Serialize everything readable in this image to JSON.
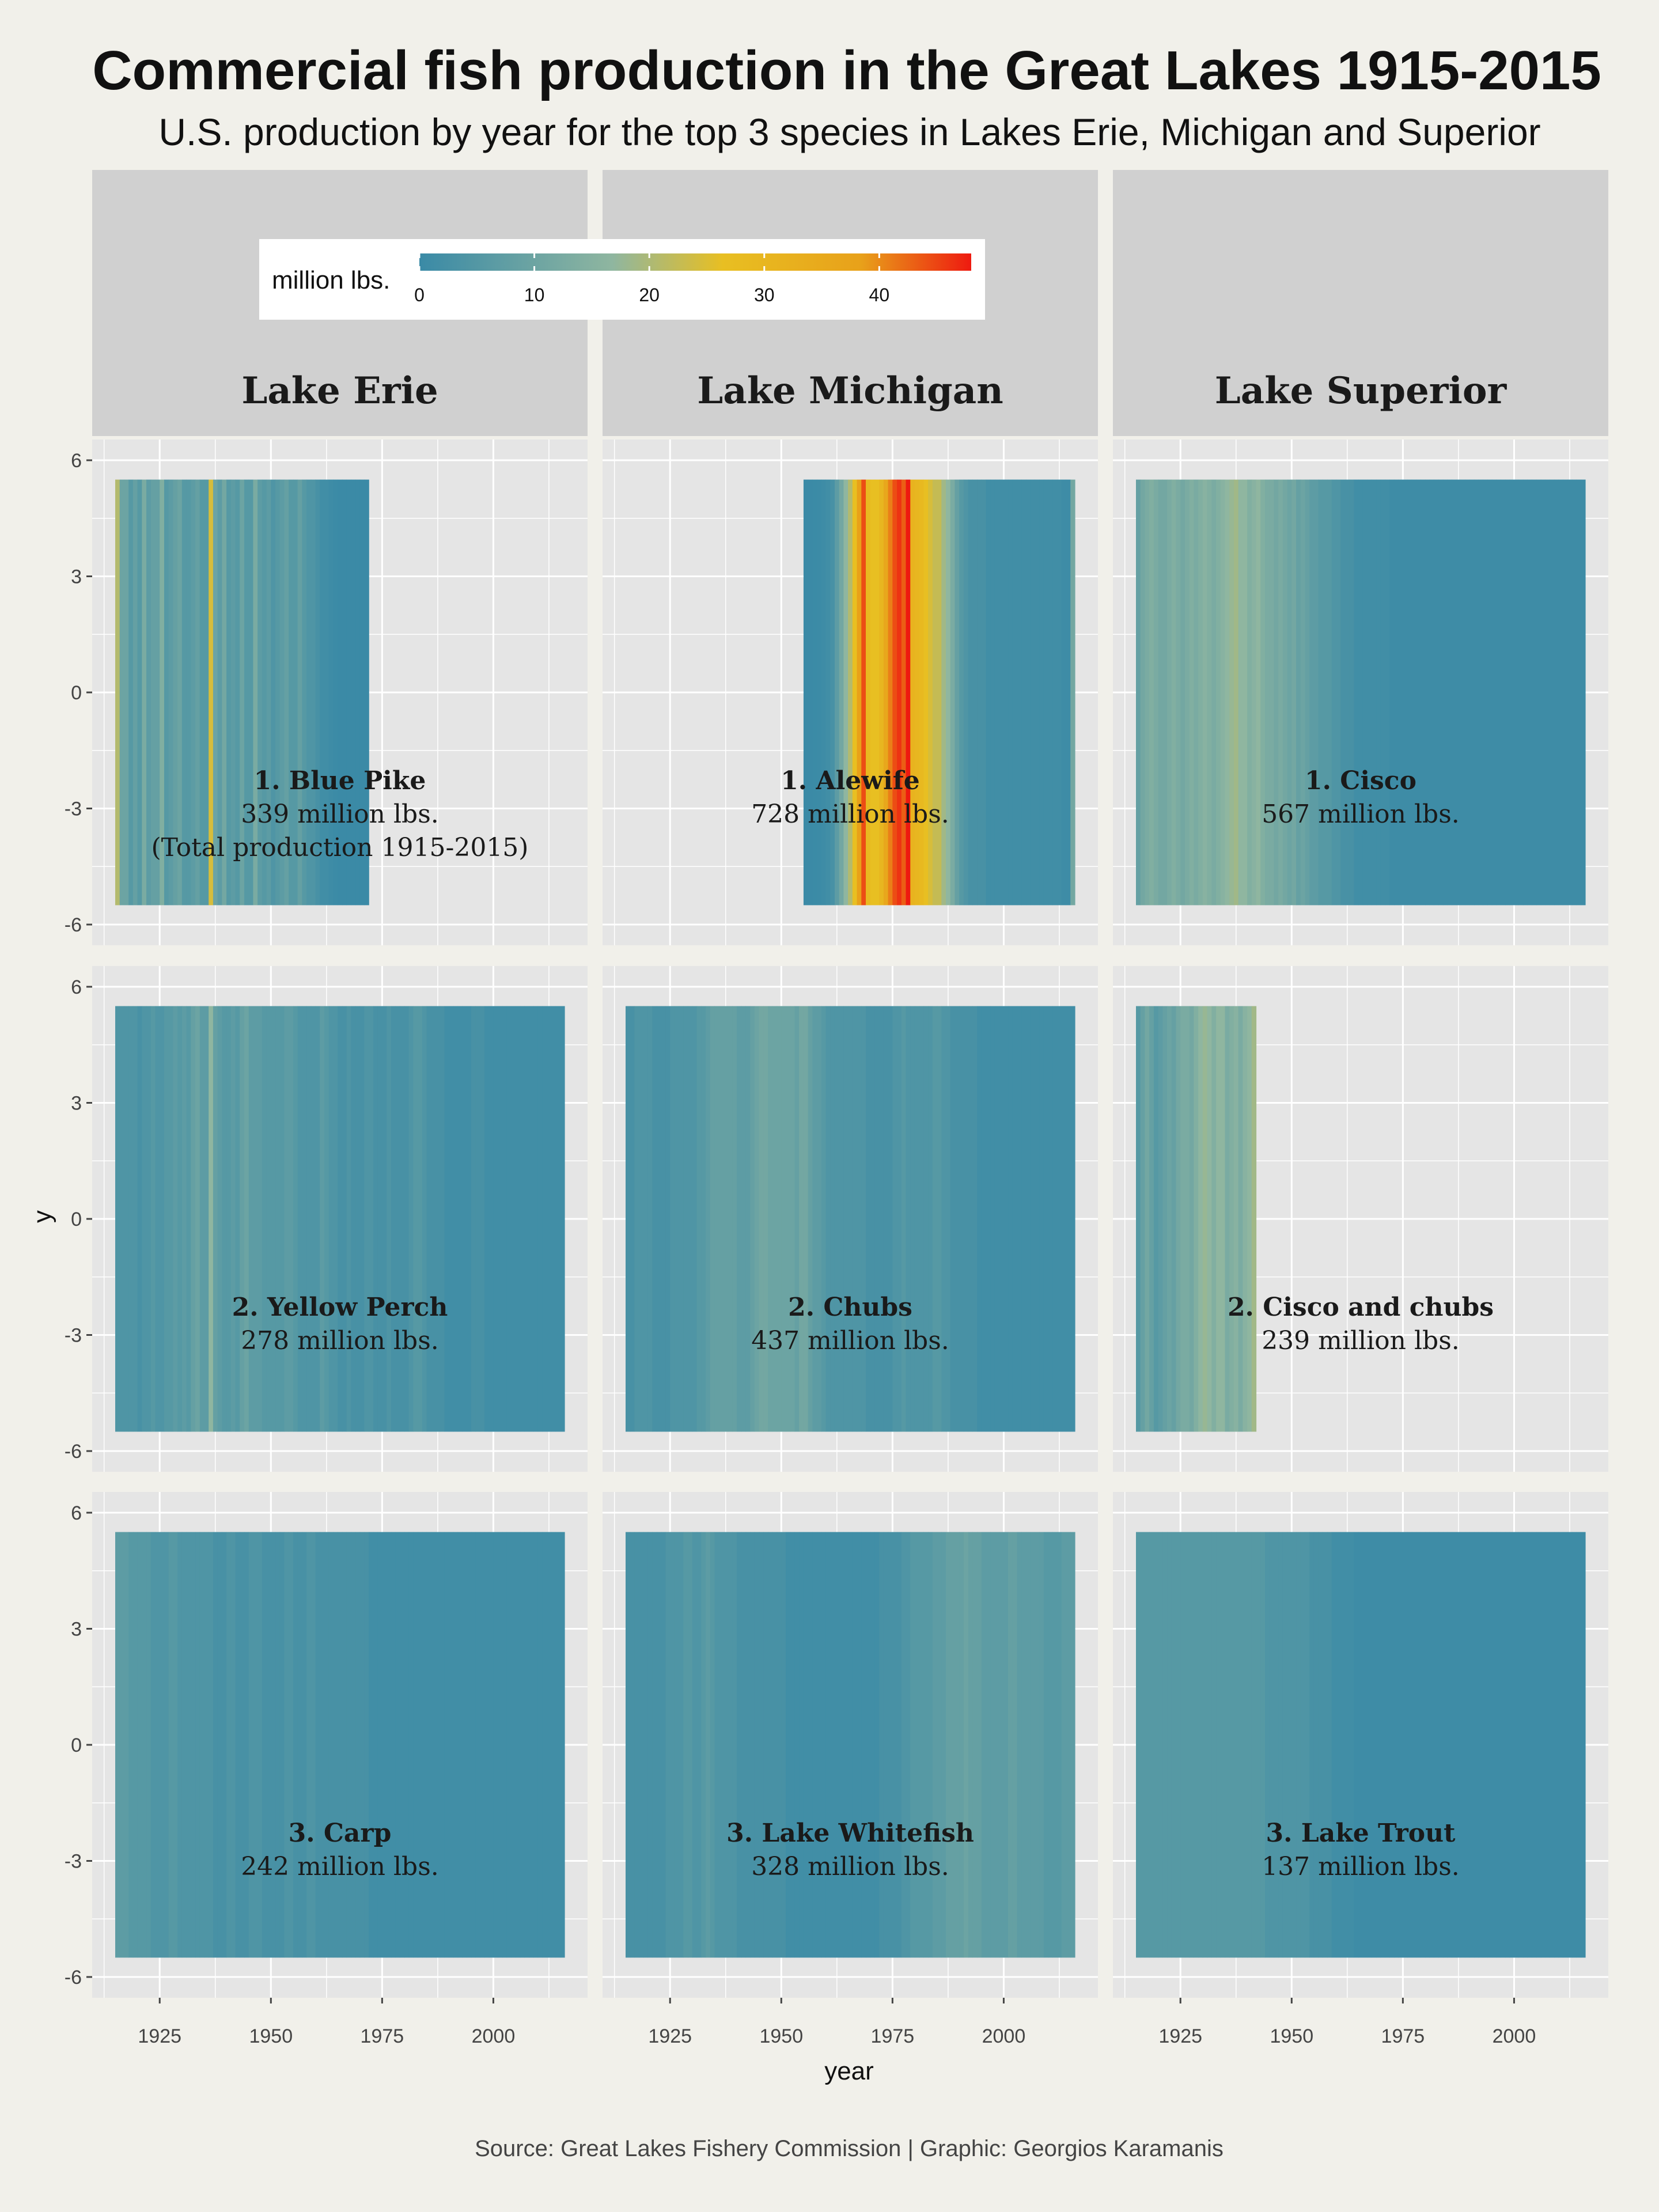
{
  "title": "Commercial fish production in the Great Lakes 1915-2015",
  "subtitle": "U.S. production by year for the top 3 species in Lakes Erie, Michigan and Superior",
  "caption": "Source: Great Lakes Fishery Commission | Graphic: Georgios Karamanis",
  "colors": {
    "background": "#f1f0ea",
    "panel": "#e5e5e5",
    "strip": "#d0d0d0",
    "grid": "#ffffff",
    "scale": [
      "#3a8aa6",
      "#8fb6a0",
      "#e8bf22",
      "#e8a11a",
      "#ee1a10"
    ]
  },
  "chart_data": {
    "type": "heatmap",
    "xlabel": "year",
    "ylabel": "y",
    "xlim": [
      1915,
      2015
    ],
    "ylim": [
      -6,
      6
    ],
    "x_ticks": [
      1925,
      1950,
      1975,
      2000
    ],
    "y_ticks": [
      -6,
      -3,
      0,
      3,
      6
    ],
    "legend": {
      "title": "million lbs.",
      "position": "top",
      "ticks": [
        0,
        10,
        20,
        30,
        40
      ],
      "range": [
        0,
        48
      ]
    },
    "columns": [
      "Lake Erie",
      "Lake Michigan",
      "Lake Superior"
    ],
    "panels": [
      {
        "lake": "Lake Erie",
        "row": 0,
        "name": "1. Blue Pike",
        "total": "339 million lbs.",
        "note": "(Total production 1915-2015)",
        "start": 1915,
        "end": 1971,
        "values": [
          16,
          7,
          7,
          4,
          6,
          4,
          9,
          5,
          6,
          6,
          10,
          4,
          5,
          6,
          7,
          4,
          4,
          5,
          6,
          4,
          4,
          20,
          7,
          5,
          8,
          4,
          5,
          4,
          7,
          4,
          4,
          9,
          5,
          4,
          5,
          3,
          4,
          5,
          6,
          4,
          4,
          6,
          4,
          3,
          3,
          2,
          1,
          1,
          0.5,
          0.3,
          0.1,
          0.1,
          0.1,
          0.1,
          0.1,
          0.1,
          0.1
        ]
      },
      {
        "lake": "Lake Michigan",
        "row": 0,
        "name": "1. Alewife",
        "total": "728 million lbs.",
        "start": 1955,
        "end": 2015,
        "values": [
          0.1,
          0.1,
          0.2,
          0.3,
          0.5,
          1,
          2,
          5,
          8,
          12,
          16,
          22,
          32,
          42,
          24,
          22,
          22,
          25,
          30,
          36,
          42,
          45,
          40,
          48,
          26,
          25,
          24,
          22,
          20,
          18,
          18,
          14,
          12,
          9,
          6,
          4,
          3,
          2,
          2,
          2,
          2,
          1,
          1,
          1,
          1,
          1,
          1,
          1,
          1,
          1,
          1,
          1,
          1,
          1,
          1,
          1,
          1,
          1,
          0.5,
          0.5,
          8
        ]
      },
      {
        "lake": "Lake Superior",
        "row": 0,
        "name": "1. Cisco",
        "total": "567 million lbs.",
        "start": 1915,
        "end": 2015,
        "values": [
          6,
          8,
          9,
          10,
          9,
          8,
          8,
          9,
          10,
          9,
          8,
          9,
          10,
          9,
          10,
          11,
          10,
          9,
          10,
          11,
          12,
          13,
          14,
          12,
          12,
          10,
          11,
          12,
          10,
          9,
          9,
          8,
          9,
          8,
          7,
          8,
          6,
          7,
          6,
          5,
          5,
          4,
          4,
          4,
          3,
          3,
          2,
          2,
          2,
          1,
          1,
          1,
          1,
          1,
          1,
          1,
          1,
          0.5,
          0.5,
          0.5,
          0.5,
          0.5,
          0.5,
          0.5,
          0.5,
          0.5,
          0.5,
          0.5,
          0.5,
          0.5,
          0.5,
          0.5,
          0.5,
          0.5,
          0.5,
          0.5,
          0.5,
          0.5,
          0.5,
          0.5,
          0.5,
          0.5,
          0.5,
          0.5,
          0.5,
          0.5,
          0.5,
          0.5,
          0.5,
          0.5,
          0.5,
          0.5,
          0.5,
          0.5,
          0.5,
          0.5,
          0.5,
          0.5,
          0.5,
          0.5,
          0.5
        ]
      },
      {
        "lake": "Lake Erie",
        "row": 1,
        "name": "2. Yellow Perch",
        "total": "278 million lbs.",
        "start": 1915,
        "end": 2015,
        "values": [
          3,
          3,
          3,
          3,
          3,
          2,
          3,
          3,
          4,
          3,
          3,
          4,
          4,
          5,
          4,
          5,
          4,
          6,
          7,
          5,
          5,
          12,
          6,
          5,
          4,
          4,
          5,
          4,
          6,
          7,
          5,
          5,
          5,
          4,
          4,
          4,
          4,
          4,
          5,
          5,
          4,
          3,
          3,
          3,
          3,
          3,
          5,
          4,
          3,
          3,
          2,
          2,
          3,
          2,
          2,
          2,
          3,
          3,
          2,
          2,
          2,
          3,
          2,
          2,
          2,
          2,
          3,
          4,
          4,
          3,
          2,
          2,
          2,
          2,
          1,
          1,
          1,
          1,
          1,
          1,
          2,
          2,
          2,
          1,
          1,
          1,
          1,
          1,
          1,
          1,
          1,
          1,
          1,
          1,
          1,
          1,
          1,
          1,
          1,
          1,
          1
        ]
      },
      {
        "lake": "Lake Michigan",
        "row": 1,
        "name": "2. Chubs",
        "total": "437 million lbs.",
        "start": 1915,
        "end": 2015,
        "values": [
          2,
          2,
          3,
          3,
          3,
          3,
          2,
          2,
          2,
          2,
          3,
          3,
          3,
          3,
          3,
          3,
          4,
          4,
          5,
          6,
          6,
          6,
          6,
          6,
          6,
          5,
          5,
          5,
          6,
          7,
          8,
          8,
          7,
          7,
          7,
          7,
          7,
          7,
          6,
          8,
          8,
          6,
          5,
          5,
          4,
          3,
          3,
          3,
          3,
          3,
          3,
          3,
          3,
          3,
          2,
          2,
          2,
          2,
          2,
          2,
          3,
          3,
          4,
          3,
          3,
          3,
          3,
          3,
          3,
          4,
          4,
          3,
          3,
          2,
          2,
          2,
          2,
          2,
          2,
          1,
          1,
          1,
          1,
          1,
          1,
          1,
          1,
          1,
          1,
          1,
          1,
          1,
          1,
          1,
          1,
          1,
          1,
          1,
          1,
          1,
          1
        ]
      },
      {
        "lake": "Lake Superior",
        "row": 1,
        "name": "2. Cisco and chubs",
        "total": "239 million lbs.",
        "start": 1915,
        "end": 1941,
        "values": [
          4,
          6,
          8,
          6,
          4,
          5,
          6,
          7,
          6,
          8,
          9,
          9,
          8,
          10,
          12,
          13,
          12,
          10,
          12,
          12,
          9,
          10,
          11,
          9,
          11,
          12,
          14
        ]
      },
      {
        "lake": "Lake Erie",
        "row": 2,
        "name": "3. Carp",
        "total": "242 million lbs.",
        "start": 1915,
        "end": 2015,
        "values": [
          5,
          5,
          5,
          4,
          4,
          4,
          4,
          4,
          3,
          3,
          3,
          3,
          4,
          4,
          3,
          3,
          3,
          3,
          3,
          3,
          3,
          3,
          2,
          2,
          2,
          3,
          3,
          2,
          2,
          2,
          3,
          3,
          3,
          2,
          2,
          2,
          2,
          2,
          3,
          3,
          2,
          2,
          2,
          3,
          3,
          2,
          2,
          2,
          2,
          2,
          2,
          2,
          2,
          2,
          2,
          2,
          2,
          1,
          1,
          1,
          1,
          1,
          1,
          1,
          1,
          1,
          1,
          1,
          1,
          1,
          1,
          1,
          1,
          1,
          1,
          1,
          1,
          1,
          1,
          1,
          1,
          1,
          1,
          1,
          1,
          1,
          1,
          1,
          1,
          1,
          1,
          1,
          1,
          1,
          1,
          1,
          1,
          1,
          1,
          1,
          1
        ]
      },
      {
        "lake": "Lake Michigan",
        "row": 2,
        "name": "3. Lake Whitefish",
        "total": "328 million lbs.",
        "start": 1915,
        "end": 2015,
        "values": [
          2,
          2,
          2,
          2,
          2,
          2,
          2,
          2,
          2,
          3,
          3,
          3,
          3,
          4,
          4,
          3,
          3,
          4,
          5,
          4,
          3,
          3,
          3,
          3,
          3,
          2,
          2,
          2,
          2,
          2,
          2,
          2,
          2,
          2,
          2,
          2,
          1,
          1,
          1,
          1,
          1,
          1,
          1,
          1,
          1,
          1,
          1,
          1,
          1,
          1,
          1,
          1,
          1,
          1,
          1,
          1,
          1,
          2,
          2,
          2,
          2,
          2,
          3,
          3,
          4,
          4,
          4,
          4,
          4,
          5,
          5,
          5,
          6,
          6,
          6,
          6,
          7,
          6,
          6,
          6,
          5,
          5,
          5,
          5,
          5,
          5,
          6,
          6,
          5,
          5,
          5,
          5,
          5,
          5,
          4,
          4,
          4,
          4,
          5,
          5,
          5
        ]
      },
      {
        "lake": "Lake Superior",
        "row": 2,
        "name": "3. Lake Trout",
        "total": "137 million lbs.",
        "start": 1915,
        "end": 2015,
        "values": [
          4,
          4,
          4,
          4,
          4,
          4,
          4,
          4,
          4,
          4,
          4,
          4,
          4,
          4,
          4,
          4,
          4,
          4,
          4,
          4,
          4,
          4,
          4,
          4,
          4,
          4,
          4,
          4,
          4,
          3,
          3,
          3,
          3,
          3,
          3,
          3,
          3,
          3,
          3,
          2,
          2,
          2,
          2,
          2,
          1,
          1,
          1,
          1,
          1,
          0.5,
          0.5,
          0.5,
          0.5,
          0.5,
          0.5,
          0.5,
          0.5,
          0.5,
          0.5,
          0.5,
          0.5,
          0.5,
          0.5,
          0.5,
          0.5,
          0.5,
          0.5,
          0.5,
          0.5,
          0.5,
          0.5,
          0.5,
          0.5,
          0.5,
          0.5,
          0.5,
          0.5,
          0.5,
          0.5,
          0.5,
          0.5,
          0.5,
          0.5,
          0.5,
          0.5,
          0.5,
          0.5,
          0.5,
          0.5,
          0.5,
          0.5,
          0.5,
          0.5,
          0.5,
          0.5,
          0.5,
          0.5,
          0.5,
          0.5,
          0.5,
          0.5
        ]
      }
    ]
  }
}
